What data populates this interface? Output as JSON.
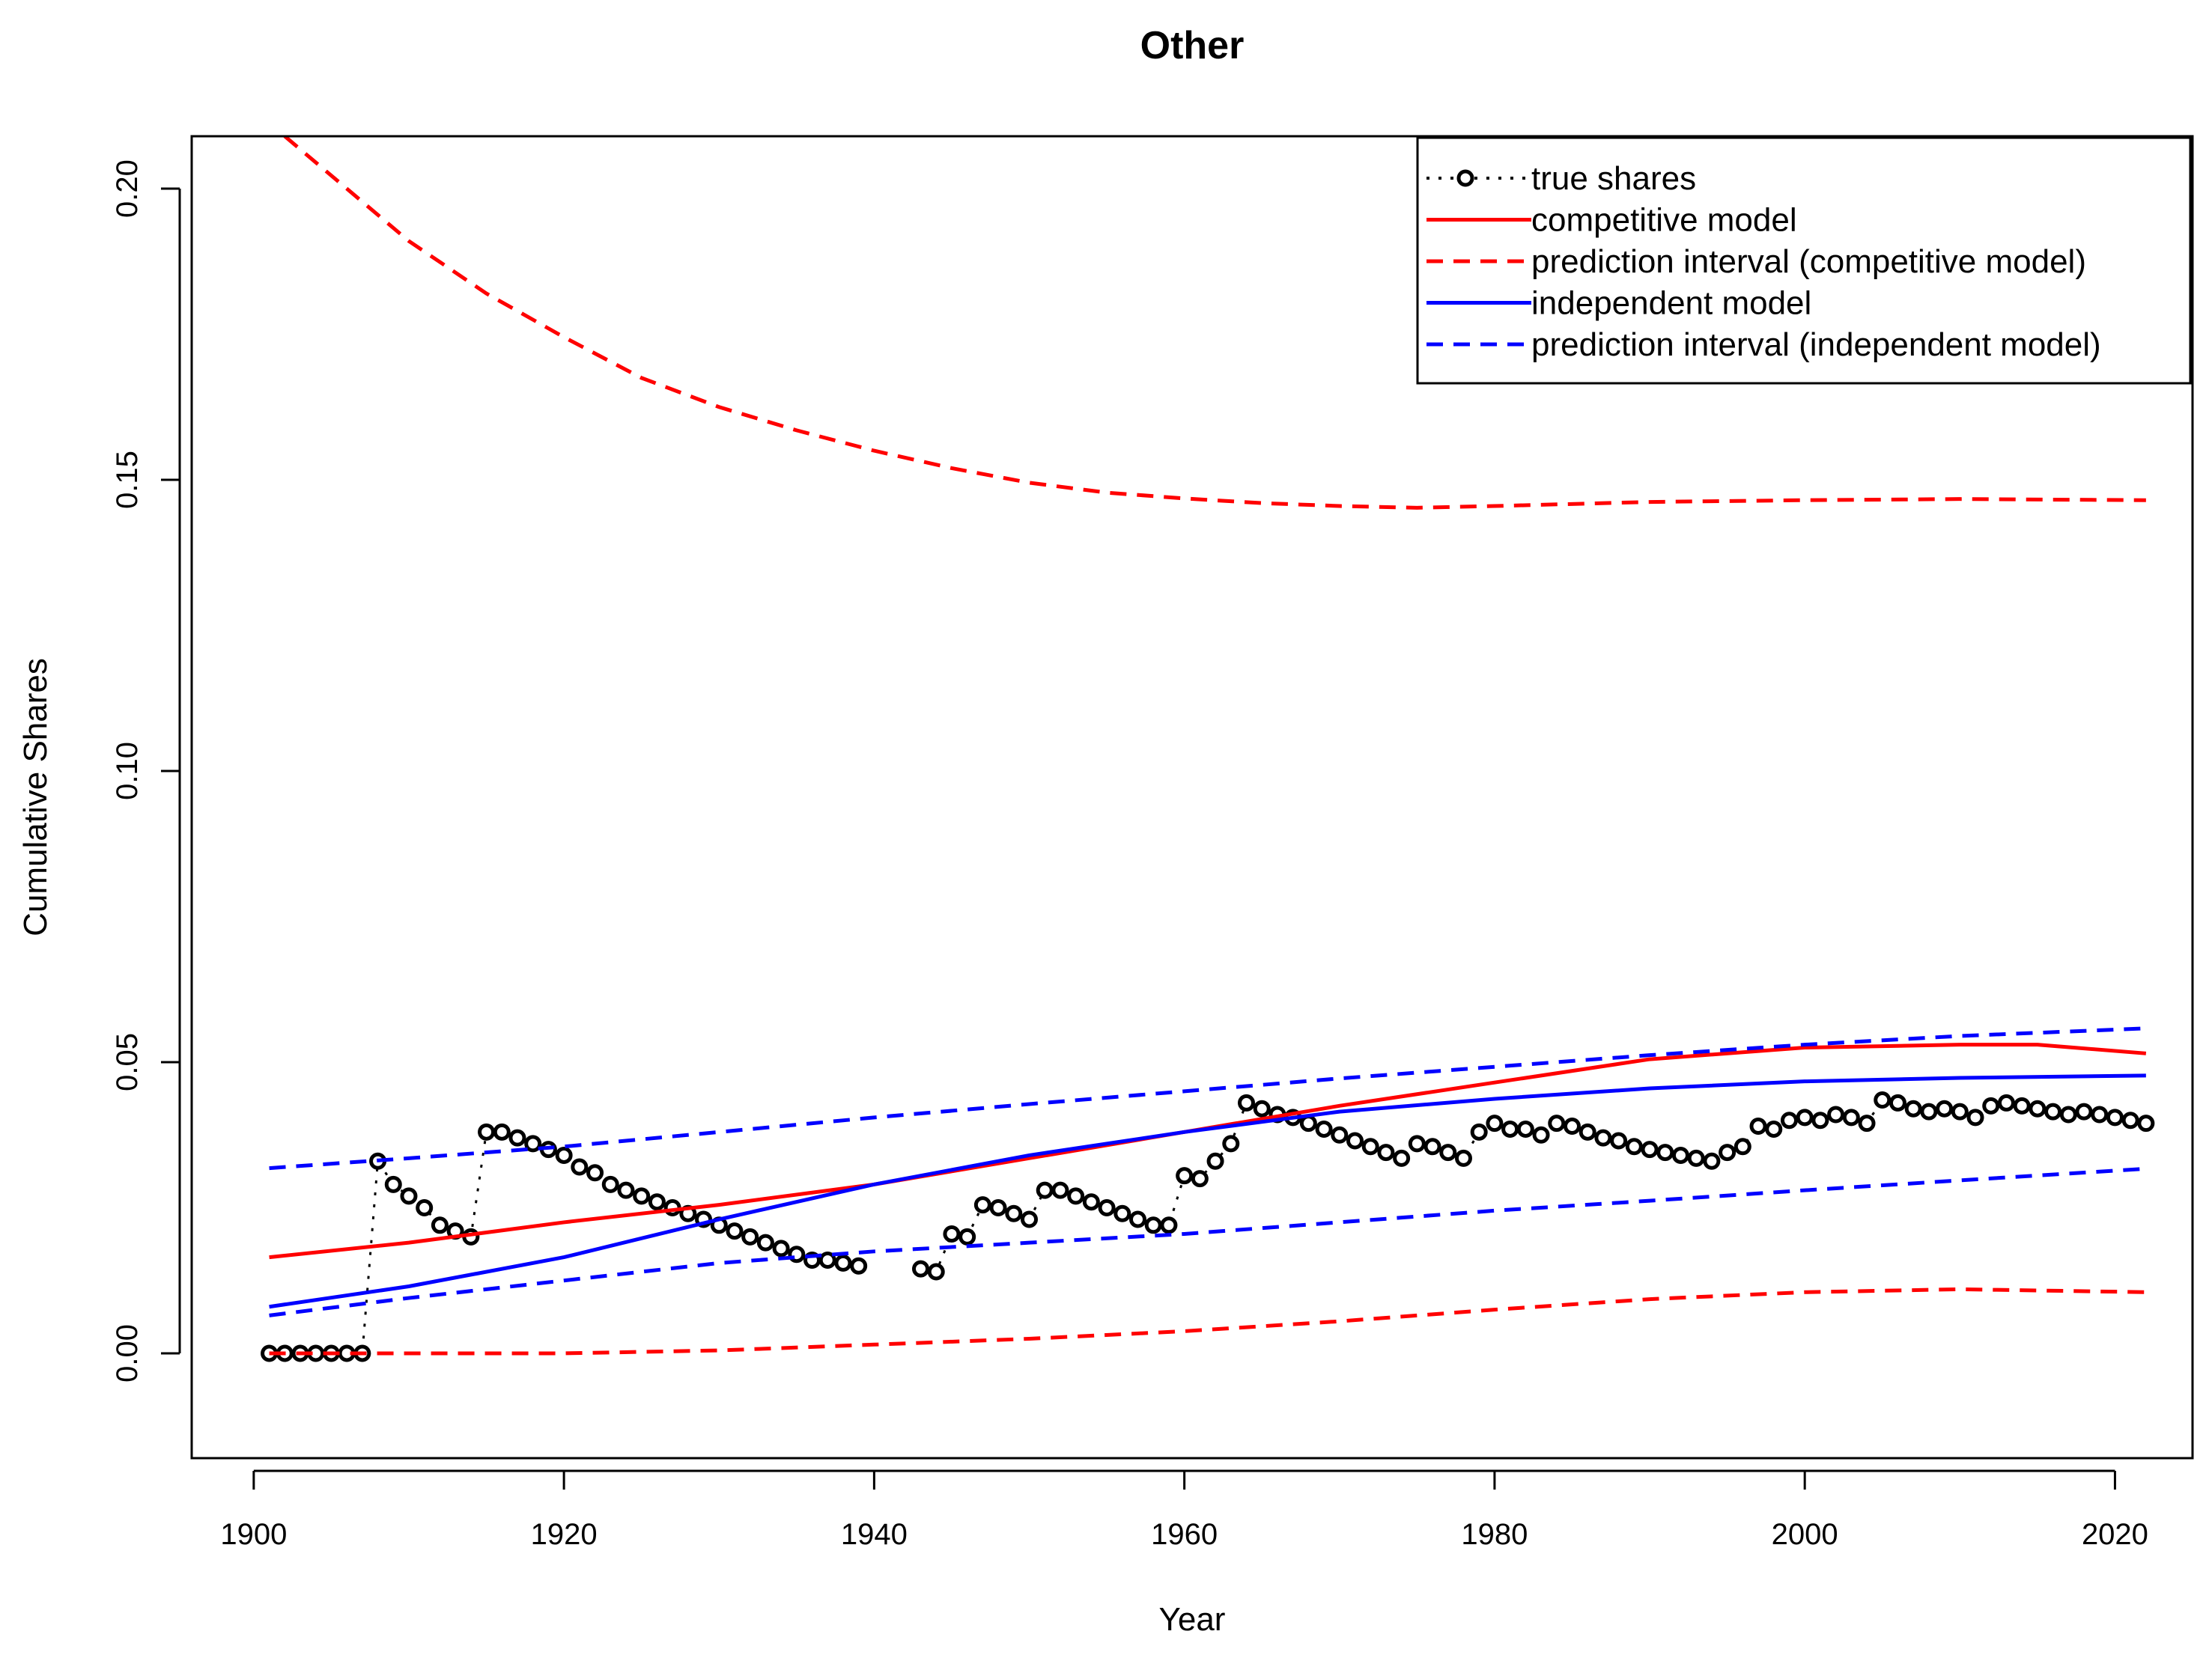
{
  "chart_data": {
    "type": "line",
    "title": "Other",
    "xlabel": "Year",
    "ylabel": "Cumulative Shares",
    "xlim": [
      1896,
      2025
    ],
    "ylim": [
      -0.018,
      0.209
    ],
    "xticks": [
      1900,
      1920,
      1940,
      1960,
      1980,
      2000,
      2020
    ],
    "xtick_labels": [
      "1900",
      "1920",
      "1940",
      "1960",
      "1980",
      "2000",
      "2020"
    ],
    "yticks": [
      0.0,
      0.05,
      0.1,
      0.15,
      0.2
    ],
    "ytick_labels": [
      "0.00",
      "0.05",
      "0.10",
      "0.15",
      "0.20"
    ],
    "grid": false,
    "legend_position": "top-right",
    "legend": [
      {
        "label": "true shares",
        "color": "#000000",
        "style": "dotted-points"
      },
      {
        "label": "competitive model",
        "color": "#ff0000",
        "style": "solid"
      },
      {
        "label": "prediction interval (competitive model)",
        "color": "#ff0000",
        "style": "dashed"
      },
      {
        "label": "independent model",
        "color": "#0000ff",
        "style": "solid"
      },
      {
        "label": "prediction interval (independent model)",
        "color": "#0000ff",
        "style": "dashed"
      }
    ],
    "series": [
      {
        "name": "true shares",
        "color": "#000000",
        "style": "dotted-points",
        "x": [
          1901,
          1902,
          1903,
          1904,
          1905,
          1906,
          1907,
          1908,
          1909,
          1910,
          1911,
          1912,
          1913,
          1914,
          1915,
          1916,
          1917,
          1918,
          1919,
          1920,
          1921,
          1922,
          1923,
          1924,
          1925,
          1926,
          1927,
          1928,
          1929,
          1930,
          1931,
          1932,
          1933,
          1934,
          1935,
          1936,
          1937,
          1938,
          1939,
          1940,
          1941,
          1942,
          1943,
          1944,
          1945,
          1946,
          1947,
          1948,
          1949,
          1950,
          1951,
          1952,
          1953,
          1954,
          1955,
          1956,
          1957,
          1958,
          1959,
          1960,
          1961,
          1962,
          1963,
          1964,
          1965,
          1966,
          1967,
          1968,
          1969,
          1970,
          1971,
          1972,
          1973,
          1974,
          1975,
          1976,
          1977,
          1978,
          1979,
          1980,
          1981,
          1982,
          1983,
          1984,
          1985,
          1986,
          1987,
          1988,
          1989,
          1990,
          1991,
          1992,
          1993,
          1994,
          1995,
          1996,
          1997,
          1998,
          1999,
          2000,
          2001,
          2002,
          2003,
          2004,
          2005,
          2006,
          2007,
          2008,
          2009,
          2010,
          2011,
          2012,
          2013,
          2014,
          2015,
          2016,
          2017,
          2018,
          2019,
          2020,
          2021,
          2022
        ],
        "y": [
          0,
          0,
          0,
          0,
          0,
          0,
          0,
          0.033,
          0.029,
          0.027,
          0.025,
          0.022,
          0.021,
          0.02,
          0.038,
          0.038,
          0.037,
          0.036,
          0.035,
          0.034,
          0.032,
          0.031,
          0.029,
          0.028,
          0.027,
          0.026,
          0.025,
          0.024,
          0.023,
          0.022,
          0.021,
          0.02,
          0.019,
          0.018,
          0.017,
          0.016,
          0.016,
          0.0155,
          0.015,
          null,
          null,
          null,
          0.0145,
          0.014,
          0.0205,
          0.02,
          0.0255,
          0.025,
          0.024,
          0.023,
          0.028,
          0.028,
          0.027,
          0.026,
          0.025,
          0.024,
          0.023,
          0.022,
          0.022,
          0.0305,
          0.03,
          0.033,
          0.036,
          0.043,
          0.042,
          0.041,
          0.0405,
          0.0395,
          0.0385,
          0.0375,
          0.0365,
          0.0355,
          0.0345,
          0.0335,
          0.036,
          0.0355,
          0.0345,
          0.0335,
          0.038,
          0.0395,
          0.0385,
          0.0385,
          0.0375,
          0.0395,
          0.039,
          0.038,
          0.037,
          0.0365,
          0.0355,
          0.035,
          0.0345,
          0.034,
          0.0335,
          0.033,
          0.0345,
          0.0355,
          0.039,
          0.0385,
          0.04,
          0.0405,
          0.04,
          0.041,
          0.0405,
          0.0395,
          0.0435,
          0.043,
          0.042,
          0.0415,
          0.042,
          0.0415,
          0.0405,
          0.0425,
          0.043,
          0.0425,
          0.042,
          0.0415,
          0.041,
          0.0415,
          0.041,
          0.0405,
          0.04,
          0.0395
        ]
      },
      {
        "name": "competitive model",
        "color": "#ff0000",
        "style": "solid",
        "x": [
          1901,
          1910,
          1920,
          1930,
          1940,
          1950,
          1960,
          1970,
          1980,
          1990,
          2000,
          2010,
          2015,
          2022
        ],
        "y": [
          0.0165,
          0.019,
          0.0225,
          0.0255,
          0.029,
          0.0335,
          0.038,
          0.0425,
          0.0465,
          0.0505,
          0.0525,
          0.053,
          0.053,
          0.0515
        ]
      },
      {
        "name": "prediction interval (competitive model) upper",
        "color": "#ff0000",
        "style": "dashed",
        "x": [
          1902,
          1906,
          1910,
          1915,
          1920,
          1925,
          1930,
          1935,
          1940,
          1945,
          1950,
          1955,
          1960,
          1965,
          1970,
          1975,
          1980,
          1990,
          2000,
          2010,
          2022
        ],
        "y": [
          0.209,
          0.2,
          0.191,
          0.182,
          0.1745,
          0.1675,
          0.1625,
          0.1585,
          0.155,
          0.152,
          0.1495,
          0.1478,
          0.1468,
          0.146,
          0.1455,
          0.1452,
          0.1455,
          0.1462,
          0.1465,
          0.1467,
          0.1465
        ]
      },
      {
        "name": "prediction interval (competitive model) lower",
        "color": "#ff0000",
        "style": "dashed",
        "x": [
          1901,
          1910,
          1920,
          1930,
          1940,
          1950,
          1960,
          1970,
          1980,
          1990,
          2000,
          2010,
          2022
        ],
        "y": [
          0.0,
          0.0,
          0.0,
          0.0005,
          0.0015,
          0.0025,
          0.0038,
          0.0055,
          0.0075,
          0.0093,
          0.0105,
          0.011,
          0.0105
        ]
      },
      {
        "name": "independent model",
        "color": "#0000ff",
        "style": "solid",
        "x": [
          1901,
          1910,
          1920,
          1930,
          1940,
          1950,
          1960,
          1970,
          1980,
          1990,
          2000,
          2010,
          2022
        ],
        "y": [
          0.008,
          0.0115,
          0.0165,
          0.023,
          0.029,
          0.034,
          0.038,
          0.0415,
          0.0437,
          0.0455,
          0.0467,
          0.0473,
          0.0477
        ]
      },
      {
        "name": "prediction interval (independent model) upper",
        "color": "#0000ff",
        "style": "dashed",
        "x": [
          1901,
          1910,
          1920,
          1930,
          1940,
          1950,
          1960,
          1970,
          1980,
          1990,
          2000,
          2010,
          2022
        ],
        "y": [
          0.0318,
          0.0335,
          0.0355,
          0.038,
          0.0405,
          0.0428,
          0.045,
          0.0472,
          0.0492,
          0.0512,
          0.053,
          0.0545,
          0.0558
        ]
      },
      {
        "name": "prediction interval (independent model) lower",
        "color": "#0000ff",
        "style": "dashed",
        "x": [
          1901,
          1910,
          1920,
          1930,
          1940,
          1950,
          1960,
          1970,
          1980,
          1990,
          2000,
          2010,
          2022
        ],
        "y": [
          0.0065,
          0.0095,
          0.0125,
          0.0155,
          0.0175,
          0.019,
          0.0205,
          0.0225,
          0.0245,
          0.0262,
          0.028,
          0.0297,
          0.0317
        ]
      }
    ]
  }
}
